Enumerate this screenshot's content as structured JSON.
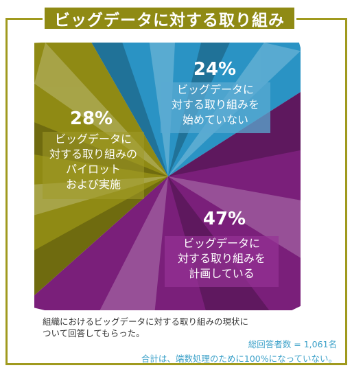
{
  "title": "ビッグデータに対する取り組み",
  "caption_line1": "組織におけるビッグデータに対する取り組みの現状に",
  "caption_line2": "ついて回答してもらった。",
  "respondents": "総回答者数 = 1,061名",
  "rounding_note": "合計は、端数処理のために100%になっていない。",
  "chart_data": {
    "type": "pie",
    "title": "ビッグデータに対する取り組み",
    "series": [
      {
        "percent": 24,
        "percent_label": "24%",
        "label_lines": [
          "ビッグデータに",
          "対する取り組みを",
          "始めていない"
        ],
        "color": "#2a93c4"
      },
      {
        "percent": 47,
        "percent_label": "47%",
        "label_lines": [
          "ビッグデータに",
          "対する取り組みを",
          "計画している"
        ],
        "color": "#7a1f7a"
      },
      {
        "percent": 28,
        "percent_label": "28%",
        "label_lines": [
          "ビッグデータに",
          "対する取り組みの",
          "パイロット",
          "および実施"
        ],
        "color": "#8f8a14"
      }
    ]
  }
}
